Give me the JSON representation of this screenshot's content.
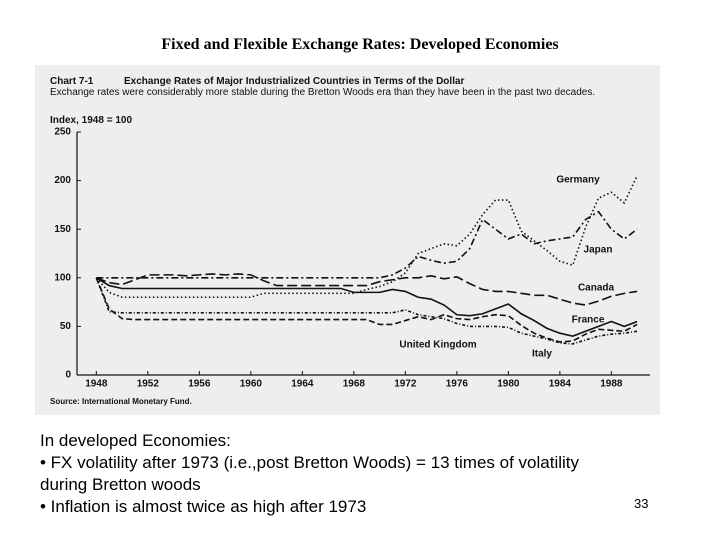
{
  "slide_title": "Fixed and Flexible Exchange Rates: Developed Economies",
  "chart_data": {
    "type": "line",
    "chart_number": "Chart 7-1",
    "title": "Exchange Rates of Major Industrialized Countries in Terms of the Dollar",
    "subtitle": "Exchange rates were considerably more stable during the Bretton Woods era than they have been in the past two decades.",
    "y_label": "Index, 1948 = 100",
    "source": "Source: International Monetary Fund.",
    "x": [
      1948,
      1949,
      1950,
      1951,
      1952,
      1953,
      1954,
      1955,
      1956,
      1957,
      1958,
      1959,
      1960,
      1961,
      1962,
      1963,
      1964,
      1965,
      1966,
      1967,
      1968,
      1969,
      1970,
      1971,
      1972,
      1973,
      1974,
      1975,
      1976,
      1977,
      1978,
      1979,
      1980,
      1981,
      1982,
      1983,
      1984,
      1985,
      1986,
      1987,
      1988,
      1989,
      1990
    ],
    "xlim": [
      1946.5,
      1991
    ],
    "xticks": [
      1948,
      1952,
      1956,
      1960,
      1964,
      1968,
      1972,
      1976,
      1980,
      1984,
      1988
    ],
    "ylim": [
      0,
      250
    ],
    "yticks": [
      0,
      50,
      100,
      150,
      200,
      250
    ],
    "series": [
      {
        "name": "Germany",
        "color": "#111111",
        "style": "dotted",
        "values": [
          100,
          85,
          80,
          80,
          80,
          80,
          80,
          80,
          80,
          80,
          80,
          80,
          80,
          84,
          84,
          84,
          84,
          84,
          84,
          84,
          84,
          88,
          91,
          96,
          105,
          125,
          130,
          135,
          133,
          145,
          165,
          180,
          180,
          148,
          138,
          128,
          117,
          113,
          152,
          182,
          188,
          177,
          205
        ]
      },
      {
        "name": "Japan",
        "color": "#111111",
        "style": "dashdot",
        "values": [
          100,
          100,
          100,
          100,
          100,
          100,
          100,
          100,
          100,
          100,
          100,
          100,
          100,
          100,
          100,
          100,
          100,
          100,
          100,
          100,
          100,
          100,
          100,
          103,
          110,
          122,
          118,
          115,
          117,
          130,
          160,
          150,
          140,
          145,
          135,
          138,
          140,
          142,
          160,
          168,
          150,
          140,
          150
        ]
      },
      {
        "name": "Canada",
        "color": "#111111",
        "style": "longdash",
        "values": [
          100,
          95,
          93,
          98,
          103,
          103,
          103,
          102,
          103,
          104,
          103,
          104,
          103,
          97,
          92,
          92,
          92,
          92,
          92,
          92,
          92,
          92,
          96,
          98,
          100,
          100,
          102,
          99,
          101,
          94,
          88,
          86,
          86,
          84,
          82,
          82,
          78,
          74,
          72,
          76,
          81,
          84,
          86
        ]
      },
      {
        "name": "France",
        "color": "#111111",
        "style": "dashed",
        "values": [
          100,
          68,
          58,
          57,
          57,
          57,
          57,
          57,
          57,
          57,
          57,
          57,
          57,
          57,
          57,
          57,
          57,
          57,
          57,
          57,
          57,
          57,
          52,
          52,
          56,
          60,
          57,
          62,
          58,
          57,
          60,
          62,
          61,
          51,
          43,
          38,
          34,
          35,
          42,
          47,
          46,
          45,
          52
        ]
      },
      {
        "name": "United Kingdom",
        "color": "#111111",
        "style": "solid",
        "values": [
          100,
          92,
          89,
          89,
          89,
          89,
          89,
          89,
          89,
          89,
          89,
          89,
          89,
          89,
          89,
          89,
          89,
          89,
          89,
          89,
          85,
          85,
          85,
          88,
          86,
          80,
          78,
          72,
          62,
          61,
          63,
          68,
          73,
          63,
          56,
          48,
          43,
          40,
          45,
          50,
          55,
          50,
          55
        ]
      },
      {
        "name": "Italy",
        "color": "#111111",
        "style": "dotdash",
        "values": [
          100,
          65,
          64,
          64,
          64,
          64,
          64,
          64,
          64,
          64,
          64,
          64,
          64,
          64,
          64,
          64,
          64,
          64,
          64,
          64,
          64,
          64,
          64,
          64,
          67,
          62,
          60,
          58,
          53,
          50,
          50,
          50,
          49,
          43,
          40,
          37,
          33,
          32,
          36,
          40,
          42,
          43,
          45
        ]
      }
    ]
  },
  "bullets": [
    "In developed Economies:",
    "• FX volatility after 1973 (i.e.,post Bretton Woods) = 13 times of volatility during Bretton woods",
    "• Inflation is almost twice as high after 1973"
  ],
  "page_number": "33"
}
